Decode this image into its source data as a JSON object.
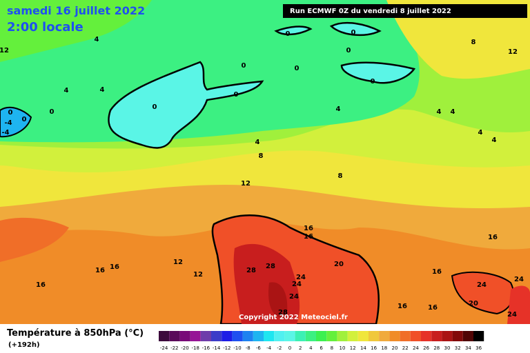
{
  "header": {
    "title": "samedi 16 juillet 2022",
    "subtitle": "2:00 locale",
    "run": "Run ECMWF 0Z du vendredi 8 juillet 2022"
  },
  "copyright": "Copyright 2022 Meteociel.fr",
  "legend": {
    "title": "Température à 850hPa (°C)",
    "lead": "(+192h)",
    "ticks": [
      -24,
      -22,
      -20,
      -18,
      -16,
      -14,
      -12,
      -10,
      -8,
      -6,
      -4,
      -2,
      0,
      2,
      4,
      6,
      8,
      10,
      12,
      14,
      16,
      18,
      20,
      22,
      24,
      26,
      28,
      30,
      32,
      34,
      36
    ],
    "colors": [
      "#3c0a3c",
      "#5a0a5a",
      "#780a78",
      "#961496",
      "#6e3caa",
      "#3c3cc8",
      "#1e1ee6",
      "#1e50f0",
      "#1e82f0",
      "#1eb4f0",
      "#1ee6f0",
      "#50f0f0",
      "#5af5e6",
      "#3cf0b4",
      "#3cf082",
      "#3cf050",
      "#64f03c",
      "#a0f03c",
      "#d2f03c",
      "#f0e63c",
      "#f0c83c",
      "#f0aa3c",
      "#f08c28",
      "#f06e28",
      "#f05028",
      "#e63228",
      "#c81e1e",
      "#aa1414",
      "#820a0a",
      "#500505",
      "#000000"
    ]
  },
  "contour_labels": [
    12,
    4,
    4,
    4,
    0,
    0,
    0,
    -4,
    -4,
    0,
    0,
    0,
    0,
    0,
    0,
    0,
    0,
    4,
    4,
    8,
    8,
    12,
    8,
    12,
    4,
    4,
    4,
    4,
    16,
    16,
    16,
    16,
    16,
    12,
    12,
    16,
    28,
    28,
    24,
    24,
    24,
    20,
    16,
    24,
    20,
    24,
    16,
    16,
    24,
    28
  ]
}
